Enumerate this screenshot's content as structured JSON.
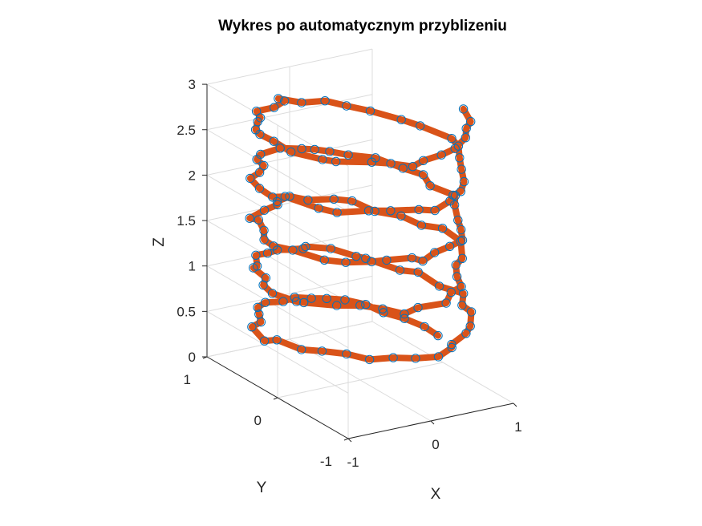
{
  "colors": {
    "line": "#d95319",
    "marker": "#0072bd",
    "grid": "#dcdcdc",
    "axis": "#262626",
    "background": "#ffffff"
  },
  "chart_data": {
    "type": "line",
    "variant": "3d-helix-line-with-circle-markers",
    "title": "Wykres po automatycznym przyblizeniu",
    "xlabel": "X",
    "ylabel": "Y",
    "zlabel": "Z",
    "xlim": [
      -1,
      1
    ],
    "ylim": [
      -1,
      1
    ],
    "zlim": [
      0,
      3
    ],
    "x_ticks": [
      "-1",
      "0",
      "1"
    ],
    "y_ticks": [
      "-1",
      "0",
      "1"
    ],
    "z_ticks": [
      "0",
      "0.5",
      "1",
      "1.5",
      "2",
      "2.5",
      "3"
    ],
    "grid": true,
    "box": false,
    "series": [
      {
        "turns": 5,
        "points_per_turn": 30,
        "z_range": [
          0.3,
          3.0
        ],
        "noise_amplitude": 0.15,
        "x": [
          0.95,
          0.94,
          0.86,
          0.75,
          0.69,
          0.55,
          0.38,
          0.22,
          0.06,
          -0.12,
          -0.32,
          -0.49,
          -0.61,
          -0.74,
          -0.91,
          -1.04,
          -0.94,
          -0.9,
          -0.77,
          -0.61,
          -0.52,
          -0.31,
          -0.15,
          0.05,
          0.28,
          0.31,
          0.58,
          0.7,
          0.9,
          0.89,
          1.07,
          0.94,
          0.94,
          0.78,
          0.63,
          0.55,
          0.43,
          0.21,
          0.13,
          -0.15,
          -0.31,
          -0.46,
          -0.64,
          -0.73,
          -0.8,
          -0.96,
          -1.02,
          -0.96,
          -0.94,
          -0.72,
          -0.54,
          -0.42,
          -0.32,
          -0.13,
          0.16,
          0.34,
          0.49,
          0.59,
          0.73,
          0.86,
          1.08,
          1.09,
          0.92,
          0.87,
          0.68,
          0.61,
          0.45,
          0.18,
          0.06,
          -0.16,
          -0.23,
          -0.46,
          -0.74,
          -0.7,
          -0.84,
          -1.01,
          -1.05,
          -0.97,
          -0.87,
          -0.73,
          -0.52,
          -0.39,
          -0.16,
          -0.14,
          0.08,
          0.28,
          0.46,
          0.58,
          0.67,
          0.86,
          0.98,
          0.88,
          0.96,
          0.85,
          0.74,
          0.53,
          0.39,
          0.26,
          0.13,
          -0.08,
          -0.36,
          -0.5,
          -0.56,
          -0.73,
          -0.93,
          -1.03,
          -1.06,
          -0.97,
          -0.88,
          -0.81,
          -0.53,
          -0.35,
          -0.11,
          -0.01,
          0.24,
          0.33,
          0.44,
          0.59,
          0.73,
          0.86,
          1.0,
          1.03,
          0.93,
          0.83,
          0.66,
          0.5,
          0.36,
          0.11,
          -0.06,
          -0.07,
          -0.29,
          -0.53,
          -0.61,
          -0.72,
          -0.89,
          -0.95,
          -0.96,
          -1.0,
          -0.85,
          -0.79,
          -0.51,
          -0.39,
          -0.27,
          -0.1,
          0.12,
          0.31,
          0.54,
          0.66,
          0.79,
          0.89
        ],
        "y": [
          0.01,
          0.19,
          0.38,
          0.55,
          0.73,
          0.86,
          0.92,
          0.95,
          1.0,
          0.95,
          0.97,
          0.88,
          0.72,
          0.54,
          0.47,
          0.14,
          0.08,
          -0.22,
          -0.36,
          -0.52,
          -0.74,
          -0.83,
          -0.96,
          -1.05,
          -0.97,
          -0.93,
          -0.82,
          -0.74,
          -0.52,
          -0.4,
          -0.21,
          -0.02,
          0.28,
          0.35,
          0.66,
          0.7,
          0.92,
          1.02,
          0.96,
          1.0,
          0.95,
          0.94,
          0.71,
          0.66,
          0.4,
          0.25,
          0.05,
          -0.22,
          -0.3,
          -0.51,
          -0.63,
          -0.81,
          -1.0,
          -0.97,
          -1.03,
          -0.89,
          -0.86,
          -0.68,
          -0.5,
          -0.44,
          -0.16,
          0.11,
          0.21,
          0.44,
          0.59,
          0.83,
          0.9,
          0.95,
          1.07,
          0.99,
          0.9,
          0.82,
          0.7,
          0.62,
          0.38,
          0.18,
          0.0,
          -0.18,
          -0.51,
          -0.65,
          -0.77,
          -0.83,
          -0.92,
          -1.05,
          -0.96,
          -0.94,
          -0.91,
          -0.75,
          -0.6,
          -0.33,
          -0.2,
          0.04,
          0.23,
          0.39,
          0.65,
          0.79,
          0.89,
          0.95,
          0.98,
          1.04,
          0.99,
          0.88,
          0.71,
          0.57,
          0.47,
          0.22,
          0.0,
          -0.07,
          -0.44,
          -0.62,
          -0.74,
          -0.84,
          -0.96,
          -1.07,
          -0.99,
          -0.93,
          -0.91,
          -0.78,
          -0.58,
          -0.4,
          -0.22,
          -0.09,
          0.24,
          0.39,
          0.63,
          0.78,
          0.92,
          0.96,
          1.09,
          0.99,
          0.88,
          0.85,
          0.7,
          0.61,
          0.44,
          0.31,
          0.1,
          -0.19,
          -0.46,
          -0.58,
          -0.76,
          -0.89,
          -1.06,
          -1.01,
          -1.01,
          -0.98,
          -0.86,
          -0.73,
          -0.64,
          -0.42
        ],
        "z": [
          0.3,
          0.32,
          0.34,
          0.35,
          0.37,
          0.39,
          0.41,
          0.43,
          0.45,
          0.46,
          0.48,
          0.5,
          0.52,
          0.54,
          0.55,
          0.57,
          0.59,
          0.61,
          0.63,
          0.64,
          0.66,
          0.68,
          0.7,
          0.72,
          0.74,
          0.75,
          0.77,
          0.79,
          0.81,
          0.83,
          0.84,
          0.86,
          0.88,
          0.9,
          0.92,
          0.94,
          0.95,
          0.97,
          0.99,
          1.01,
          1.03,
          1.04,
          1.06,
          1.08,
          1.1,
          1.12,
          1.13,
          1.15,
          1.17,
          1.19,
          1.21,
          1.23,
          1.24,
          1.26,
          1.28,
          1.3,
          1.32,
          1.33,
          1.35,
          1.37,
          1.39,
          1.41,
          1.43,
          1.44,
          1.46,
          1.48,
          1.5,
          1.52,
          1.53,
          1.55,
          1.57,
          1.59,
          1.61,
          1.62,
          1.64,
          1.66,
          1.68,
          1.7,
          1.72,
          1.73,
          1.75,
          1.77,
          1.79,
          1.81,
          1.82,
          1.84,
          1.86,
          1.88,
          1.9,
          1.91,
          1.93,
          1.95,
          1.97,
          1.99,
          2.01,
          2.02,
          2.04,
          2.06,
          2.08,
          2.1,
          2.11,
          2.13,
          2.15,
          2.17,
          2.19,
          2.21,
          2.22,
          2.24,
          2.26,
          2.28,
          2.3,
          2.31,
          2.33,
          2.35,
          2.37,
          2.39,
          2.4,
          2.42,
          2.44,
          2.46,
          2.48,
          2.5,
          2.51,
          2.53,
          2.55,
          2.57,
          2.59,
          2.6,
          2.62,
          2.64,
          2.66,
          2.68,
          2.69,
          2.71,
          2.73,
          2.75,
          2.77,
          2.79,
          2.8,
          2.82,
          2.84,
          2.86,
          2.88,
          2.89,
          2.91,
          2.93,
          2.95,
          2.97,
          2.98,
          3.0
        ]
      }
    ]
  }
}
